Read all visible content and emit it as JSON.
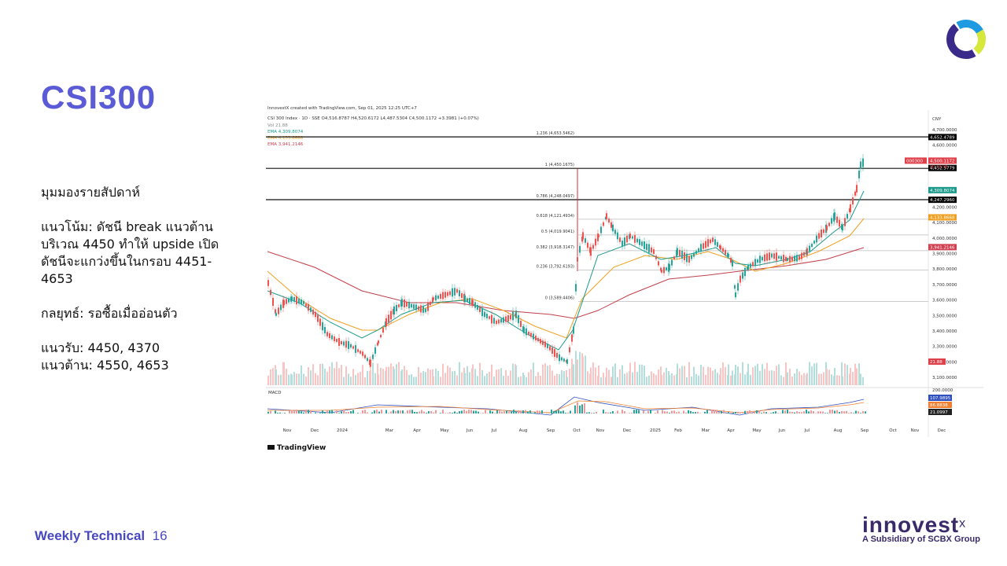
{
  "title": "CSI300",
  "body": [
    "มุมมองรายสัปดาห์",
    "แนวโน้ม: ดัชนี break แนวต้าน",
    "บริเวณ 4450 ทำให้ upside เปิด",
    "ดัชนีจะแกว่งขึ้นในกรอบ 4451-",
    "4653",
    "กลยุทธ์: รอซื้อเมื่ออ่อนตัว",
    "แนวรับ: 4450, 4370",
    "แนวต้าน: 4550, 4653"
  ],
  "footer": {
    "label": "Weekly Technical",
    "page": "16"
  },
  "brand": {
    "name": "innovest",
    "mark": "x",
    "tagline": "A Subsidiary of SCBX Group"
  },
  "chart": {
    "credit": "InnovestX created with TradingView.com, Sep 01, 2025 12:25 UTC+7",
    "header": "CSI 300 Index · 1D · SSE  O4,516.8787 H4,520.6172 L4,487.5304 C4,500.1172 +3.3981 (+0.07%)",
    "legend": [
      "Vol 21.88",
      "EMA 4,309.8074",
      "EMA 4,133.8668",
      "EMA 3,941.2146"
    ],
    "currency": "CNY",
    "yticks": [
      {
        "value": 4700,
        "label": "4,700.0000"
      },
      {
        "value": 4600,
        "label": "4,600.0000"
      },
      {
        "value": 4200,
        "label": "4,200.0000"
      },
      {
        "value": 4100,
        "label": "4,100.0000"
      },
      {
        "value": 4000,
        "label": "4,000.0000"
      },
      {
        "value": 3900,
        "label": "3,900.0000"
      },
      {
        "value": 3800,
        "label": "3,800.0000"
      },
      {
        "value": 3700,
        "label": "3,700.0000"
      },
      {
        "value": 3600,
        "label": "3,600.0000"
      },
      {
        "value": 3500,
        "label": "3,500.0000"
      },
      {
        "value": 3400,
        "label": "3,400.0000"
      },
      {
        "value": 3300,
        "label": "3,300.0000"
      },
      {
        "value": 3200,
        "label": "3,200.0000"
      },
      {
        "value": 3100,
        "label": "3,100.0000"
      }
    ],
    "fib": [
      {
        "value": 4653.5462,
        "label": "1.236 (4,653.5462)"
      },
      {
        "value": 4450.1675,
        "label": "1 (4,450.1675)"
      },
      {
        "value": 4248.0497,
        "label": "0.786 (4,248.0497)"
      },
      {
        "value": 4121.4934,
        "label": "0.618 (4,121.4934)"
      },
      {
        "value": 4019.9041,
        "label": "0.5 (4,019.9041)"
      },
      {
        "value": 3918.3147,
        "label": "0.382 (3,918.3147)"
      },
      {
        "value": 3792.6193,
        "label": "0.236 (3,792.6193)"
      },
      {
        "value": 3589.4406,
        "label": "0 (3,589.4406)"
      }
    ],
    "price_tags": [
      {
        "value": 4652.4789,
        "label": "4,652.4789",
        "color": "#000000"
      },
      {
        "value": 4500.1172,
        "label": "4,500.1172",
        "color": "#e0404a"
      },
      {
        "value": 4452.5779,
        "label": "4,452.5779",
        "color": "#000000"
      },
      {
        "value": 4309.8074,
        "label": "4,309.8074",
        "color": "#1a9a8a"
      },
      {
        "value": 4247.296,
        "label": "4,247.2960",
        "color": "#000000"
      },
      {
        "value": 4133.8668,
        "label": "4,133.8668",
        "color": "#f0a020"
      },
      {
        "value": 3941.2146,
        "label": "3,941.2146",
        "color": "#d04050"
      }
    ],
    "symbol_tag": "000300",
    "countdown": "00:19:58",
    "volume_tag": "21.88",
    "macd_label": "MACD",
    "macd_axis": "200.0000",
    "macd_tags": [
      {
        "label": "107.9895",
        "color": "#3050c0"
      },
      {
        "label": "86.8838",
        "color": "#f08030"
      },
      {
        "label": "21.0997",
        "color": "#222222"
      }
    ],
    "months": [
      "Nov",
      "Dec",
      "2024",
      "Mar",
      "Apr",
      "May",
      "Jun",
      "Jul",
      "Aug",
      "Sep",
      "Oct",
      "Nov",
      "Dec",
      "2025",
      "Feb",
      "Mar",
      "Apr",
      "May",
      "Jun",
      "Jul",
      "Aug",
      "Sep",
      "Oct",
      "Nov",
      "Dec"
    ],
    "watermark": "TradingView"
  }
}
